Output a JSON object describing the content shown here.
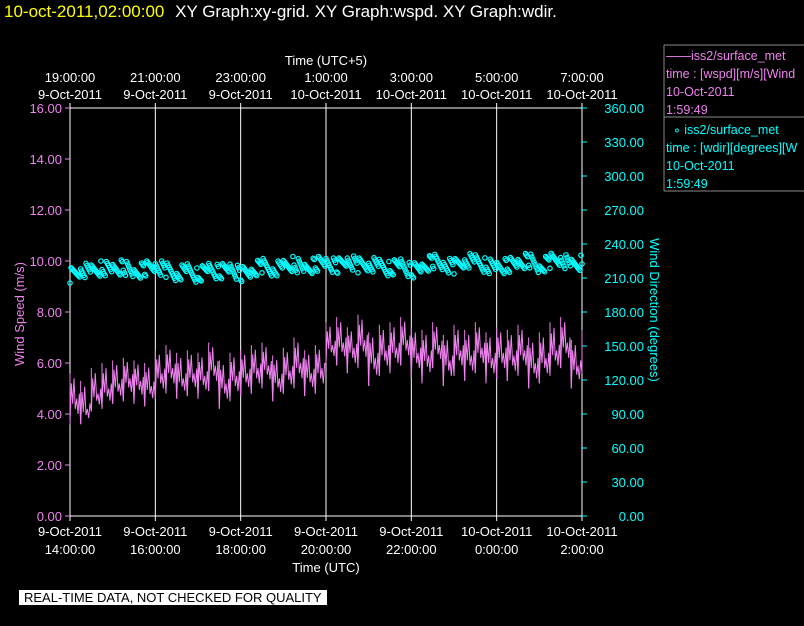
{
  "header": {
    "time": "10-oct-2011,02:00:00",
    "graphs": "XY Graph:xy-grid.  XY Graph:wspd.  XY Graph:wdir."
  },
  "legend": {
    "wspd": {
      "name": "iss2/surface_met",
      "line_glyph": "——",
      "expr": "time : [wspd][m/s][Wind",
      "date": "10-Oct-2011",
      "time": "1:59:49"
    },
    "wdir": {
      "name": "iss2/surface_met",
      "marker_glyph": "∘",
      "expr": "time : [wdir][degrees][W",
      "date": "10-Oct-2011",
      "time": "1:59:49"
    }
  },
  "footer": {
    "quality_note": "REAL-TIME DATA, NOT CHECKED FOR QUALITY"
  },
  "colors": {
    "wspd": "#ee82ee",
    "wdir": "#00ffff",
    "grid": "#ffffff",
    "title_time": "#ffff00",
    "background": "#000000"
  },
  "chart_data": {
    "type": "line",
    "top_axis": {
      "label": "Time (UTC+5)",
      "ticks": [
        [
          "19:00:00",
          "9-Oct-2011"
        ],
        [
          "21:00:00",
          "9-Oct-2011"
        ],
        [
          "23:00:00",
          "9-Oct-2011"
        ],
        [
          "1:00:00",
          "10-Oct-2011"
        ],
        [
          "3:00:00",
          "10-Oct-2011"
        ],
        [
          "5:00:00",
          "10-Oct-2011"
        ],
        [
          "7:00:00",
          "10-Oct-2011"
        ]
      ]
    },
    "x_axis": {
      "label": "Time (UTC)",
      "range_hours": [
        14,
        26
      ],
      "tick_hours": [
        14,
        16,
        18,
        20,
        22,
        24,
        26
      ],
      "ticks": [
        [
          "9-Oct-2011",
          "14:00:00"
        ],
        [
          "9-Oct-2011",
          "16:00:00"
        ],
        [
          "9-Oct-2011",
          "18:00:00"
        ],
        [
          "9-Oct-2011",
          "20:00:00"
        ],
        [
          "9-Oct-2011",
          "22:00:00"
        ],
        [
          "10-Oct-2011",
          "0:00:00"
        ],
        [
          "10-Oct-2011",
          "2:00:00"
        ]
      ]
    },
    "y_left": {
      "label": "Wind Speed (m/s)",
      "range": [
        0,
        16
      ],
      "ticks": [
        "0.00",
        "2.00",
        "4.00",
        "6.00",
        "8.00",
        "10.00",
        "12.00",
        "14.00",
        "16.00"
      ]
    },
    "y_right": {
      "label": "Wind Direction (degrees)",
      "range": [
        0,
        360
      ],
      "ticks": [
        "0.00",
        "30.00",
        "60.00",
        "90.00",
        "120.00",
        "150.00",
        "180.00",
        "210.00",
        "240.00",
        "270.00",
        "300.00",
        "330.00",
        "360.00"
      ]
    },
    "grid": true,
    "series": [
      {
        "name": "iss2/surface_met",
        "axis": "left",
        "style": "line",
        "x_hours": [
          14.0,
          14.25,
          14.5,
          14.75,
          15.0,
          15.25,
          15.5,
          15.75,
          16.0,
          16.25,
          16.5,
          16.75,
          17.0,
          17.25,
          17.5,
          17.75,
          18.0,
          18.25,
          18.5,
          18.75,
          19.0,
          19.25,
          19.5,
          19.75,
          20.0,
          20.25,
          20.5,
          20.75,
          21.0,
          21.25,
          21.5,
          21.75,
          22.0,
          22.25,
          22.5,
          22.75,
          23.0,
          23.25,
          23.5,
          23.75,
          24.0,
          24.25,
          24.5,
          24.75,
          25.0,
          25.25,
          25.5,
          25.75,
          26.0
        ],
        "values": [
          4.6,
          4.2,
          4.8,
          5.0,
          5.2,
          5.4,
          5.3,
          5.1,
          5.6,
          5.8,
          5.4,
          5.6,
          5.5,
          5.9,
          5.2,
          5.5,
          5.6,
          5.8,
          5.9,
          5.4,
          5.7,
          6.0,
          5.6,
          5.8,
          6.7,
          6.8,
          6.6,
          6.9,
          6.2,
          6.5,
          6.6,
          6.9,
          6.4,
          6.3,
          6.7,
          6.1,
          6.5,
          6.3,
          6.6,
          6.2,
          6.4,
          6.3,
          6.5,
          6.0,
          6.2,
          6.5,
          6.8,
          5.9,
          6.5
        ],
        "range_min": [
          3.6,
          3.6,
          4.1,
          4.2,
          4.4,
          4.5,
          4.4,
          4.3,
          4.6,
          4.8,
          4.6,
          4.7,
          4.6,
          4.9,
          4.2,
          4.5,
          4.7,
          4.8,
          5.0,
          4.5,
          4.8,
          5.0,
          4.7,
          4.8,
          6.0,
          5.9,
          5.6,
          5.8,
          5.1,
          5.5,
          5.6,
          5.9,
          5.4,
          5.2,
          5.8,
          5.1,
          5.5,
          5.3,
          5.6,
          5.2,
          5.4,
          5.3,
          5.5,
          5.0,
          5.2,
          5.5,
          5.8,
          5.0,
          5.6
        ],
        "range_max": [
          5.6,
          5.3,
          5.8,
          6.0,
          6.1,
          6.2,
          6.1,
          6.0,
          6.5,
          6.7,
          6.4,
          6.5,
          6.4,
          6.8,
          6.1,
          6.4,
          6.5,
          6.7,
          6.8,
          6.3,
          6.6,
          7.0,
          6.5,
          6.7,
          7.6,
          7.8,
          7.4,
          7.9,
          7.2,
          7.5,
          7.6,
          7.8,
          7.4,
          7.3,
          7.6,
          7.1,
          7.5,
          7.3,
          7.6,
          7.2,
          7.4,
          7.3,
          7.5,
          7.0,
          7.2,
          7.6,
          7.8,
          6.9,
          7.3
        ]
      },
      {
        "name": "iss2/surface_met",
        "axis": "right",
        "style": "circles",
        "x_hours": [
          14.0,
          14.25,
          14.5,
          14.75,
          15.0,
          15.25,
          15.5,
          15.75,
          16.0,
          16.25,
          16.5,
          16.75,
          17.0,
          17.25,
          17.5,
          17.75,
          18.0,
          18.25,
          18.5,
          18.75,
          19.0,
          19.25,
          19.5,
          19.75,
          20.0,
          20.25,
          20.5,
          20.75,
          21.0,
          21.25,
          21.5,
          21.75,
          22.0,
          22.25,
          22.5,
          22.75,
          23.0,
          23.25,
          23.5,
          23.75,
          24.0,
          24.25,
          24.5,
          24.75,
          25.0,
          25.25,
          25.5,
          25.75,
          26.0
        ],
        "values": [
          212,
          218,
          215,
          219,
          217,
          220,
          214,
          218,
          221,
          217,
          214,
          216,
          212,
          218,
          215,
          219,
          213,
          216,
          221,
          218,
          219,
          223,
          217,
          222,
          224,
          220,
          226,
          221,
          223,
          220,
          218,
          222,
          216,
          219,
          225,
          222,
          220,
          226,
          224,
          221,
          219,
          221,
          223,
          226,
          219,
          225,
          228,
          220,
          224
        ]
      }
    ]
  }
}
